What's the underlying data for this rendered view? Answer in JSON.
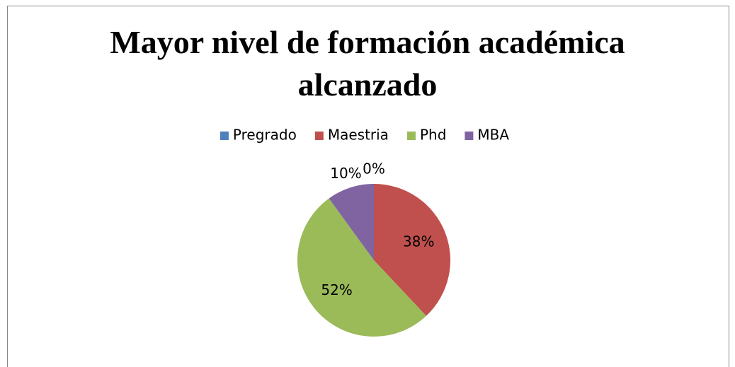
{
  "chart_data": {
    "type": "pie",
    "title": "Mayor nivel de formación académica alcanzado",
    "categories": [
      "Pregrado",
      "Maestria",
      "Phd",
      "MBA"
    ],
    "values": [
      0,
      38,
      52,
      10
    ],
    "value_labels": [
      "0%",
      "38%",
      "52%",
      "10%"
    ],
    "colors": [
      "#4f81bd",
      "#c0504d",
      "#9bbb59",
      "#8064a2"
    ],
    "legend": "top"
  }
}
